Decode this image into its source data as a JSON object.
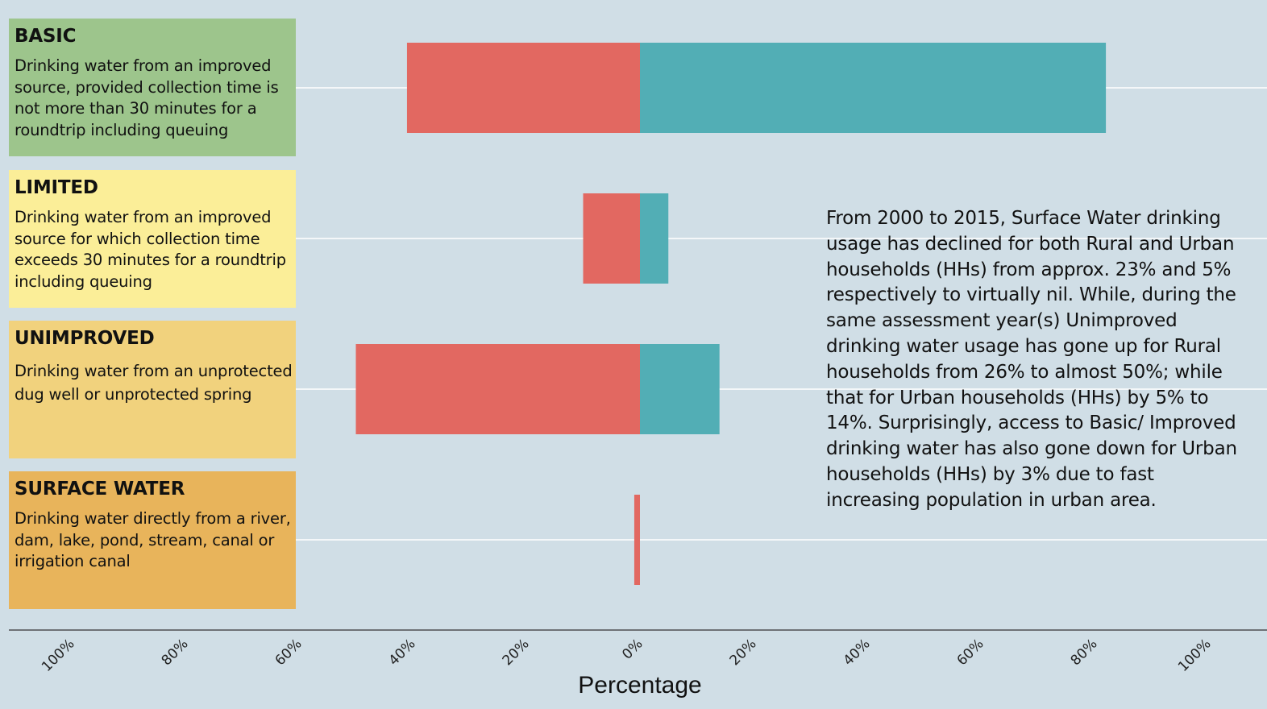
{
  "colors": {
    "background": "#d0dee6",
    "grid": "#ffffff",
    "rural": "#e26861",
    "urban": "#52aeb5",
    "basic_box": "#9dc58c",
    "limited_box": "#fbee98",
    "unimproved_box": "#f1d27d",
    "surface_box": "#e8b45b"
  },
  "categories": [
    {
      "title": "BASIC",
      "description": "Drinking water from an improved source, provided collection time is not more than 30 minutes for a roundtrip including queuing"
    },
    {
      "title": "LIMITED",
      "description": "Drinking water from an improved source for which collection time exceeds 30 minutes for a roundtrip including queuing"
    },
    {
      "title": "UNIMPROVED",
      "description": "Drinking water from an unprotected dug well or unprotected spring"
    },
    {
      "title": "SURFACE WATER",
      "description": "Drinking water directly from a river, dam, lake, pond, stream, canal or irrigation canal"
    }
  ],
  "annotation": "From 2000 to 2015, Surface Water drinking usage has declined for both Rural and Urban households (HHs) from approx. 23% and 5% respectively to virtually nil. While, during the same assessment year(s) Unimproved drinking water usage has gone up for Rural households from 26% to almost 50%; while that for Urban households (HHs) by 5% to 14%. Surprisingly, access to Basic/ Improved drinking water has also gone down for Urban households (HHs) by 3% due to fast increasing population in urban area.",
  "chart_data": {
    "type": "bar",
    "orientation": "horizontal-diverging",
    "categories": [
      "BASIC",
      "LIMITED",
      "UNIMPROVED",
      "SURFACE WATER"
    ],
    "series": [
      {
        "values": [
          41,
          10,
          50,
          1
        ]
      },
      {
        "values": [
          82,
          5,
          14,
          0
        ]
      }
    ],
    "xlabel": "Percentage",
    "xlim": [
      -100,
      100
    ],
    "x_ticks": [
      "100%",
      "80%",
      "60%",
      "40%",
      "20%",
      "0%",
      "20%",
      "40%",
      "60%",
      "80%",
      "100%"
    ],
    "grid": true
  }
}
